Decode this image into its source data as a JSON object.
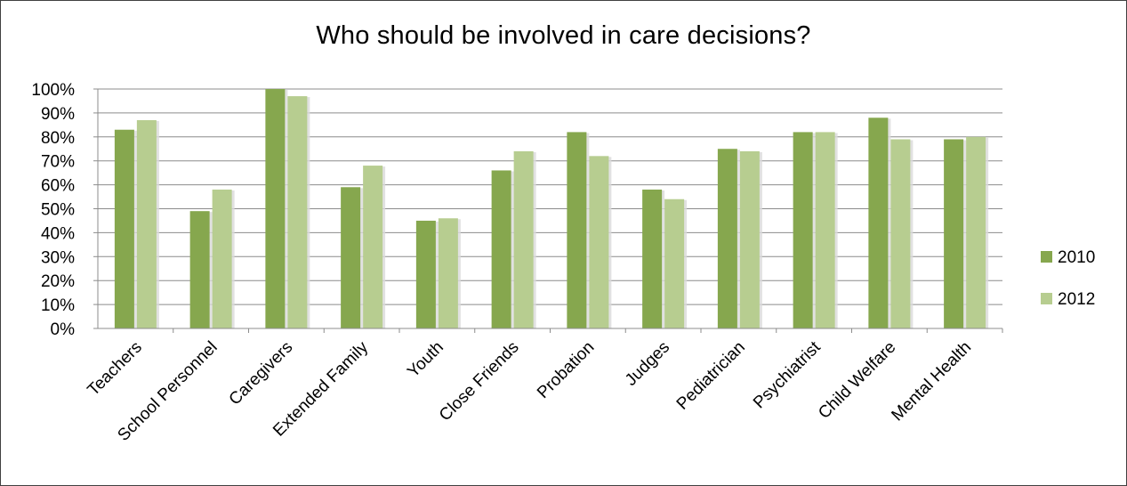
{
  "chart_data": {
    "type": "bar",
    "title": "Who should be involved in care decisions?",
    "xlabel": "",
    "ylabel": "",
    "categories": [
      "Teachers",
      "School Personnel",
      "Caregivers",
      "Extended Family",
      "Youth",
      "Close Friends",
      "Probation",
      "Judges",
      "Pediatrician",
      "Psychiatrist",
      "Child Welfare",
      "Mental Health"
    ],
    "series": [
      {
        "name": "2010",
        "color": "#86a74e",
        "values": [
          83,
          49,
          100,
          59,
          45,
          66,
          82,
          58,
          75,
          82,
          88,
          79
        ]
      },
      {
        "name": "2012",
        "color": "#b7cd90",
        "values": [
          87,
          58,
          97,
          68,
          46,
          74,
          72,
          54,
          74,
          82,
          79,
          80
        ]
      }
    ],
    "ylim": [
      0,
      100
    ],
    "yticks": [
      "0%",
      "10%",
      "20%",
      "30%",
      "40%",
      "50%",
      "60%",
      "70%",
      "80%",
      "90%",
      "100%"
    ],
    "grid": true,
    "legend_position": "right"
  }
}
